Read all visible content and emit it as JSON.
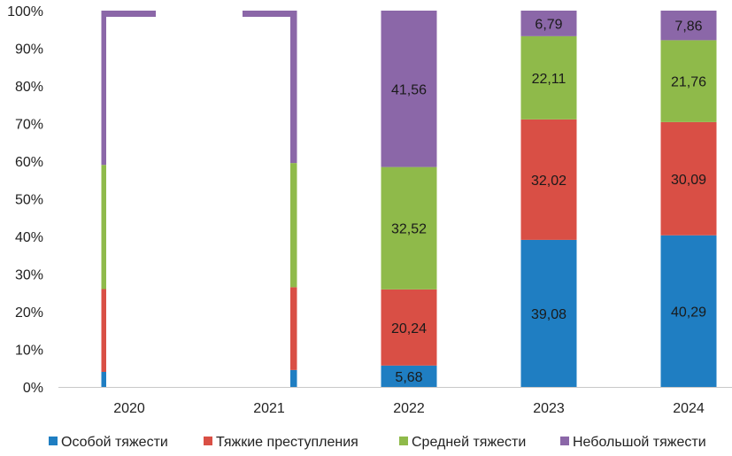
{
  "chart_data": {
    "type": "bar",
    "stacked": true,
    "percent": true,
    "categories": [
      "2020",
      "2021",
      "2022",
      "2023",
      "2024"
    ],
    "ylim": [
      0,
      100
    ],
    "yticks": [
      "0%",
      "10%",
      "20%",
      "30%",
      "40%",
      "50%",
      "60%",
      "70%",
      "80%",
      "90%",
      "100%"
    ],
    "grid": false,
    "legend": "bottom",
    "series": [
      {
        "name": "Особой тяжести",
        "color": "#1f7ec2",
        "values": [
          4,
          4.5,
          5.68,
          39.08,
          40.29
        ],
        "labels": [
          "",
          "",
          "5,68",
          "39,08",
          "40,29"
        ]
      },
      {
        "name": "Тяжкие преступления",
        "color": "#d94f45",
        "values": [
          22,
          22,
          20.24,
          32.02,
          30.09
        ],
        "labels": [
          "",
          "",
          "20,24",
          "32,02",
          "30,09"
        ]
      },
      {
        "name": "Средней тяжести",
        "color": "#8fba4a",
        "values": [
          33,
          33,
          32.52,
          22.11,
          21.76
        ],
        "labels": [
          "",
          "",
          "32,52",
          "22,11",
          "21,76"
        ]
      },
      {
        "name": "Небольшой тяжести",
        "color": "#8b67a8",
        "values": [
          41,
          40.5,
          41.56,
          6.79,
          7.86
        ],
        "labels": [
          "",
          "",
          "41,56",
          "6,79",
          "7,86"
        ]
      }
    ]
  }
}
